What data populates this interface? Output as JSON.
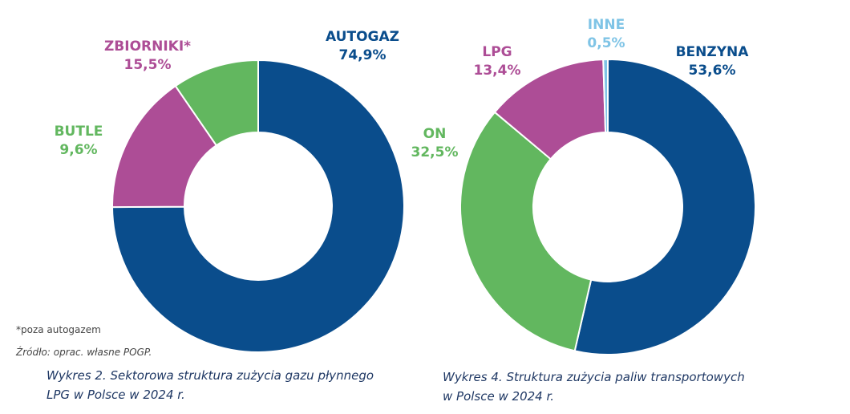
{
  "chart_data": [
    {
      "type": "donut",
      "categories": [
        "AUTOGAZ",
        "ZBIORNIKI*",
        "BUTLE"
      ],
      "values": [
        74.9,
        15.5,
        9.6
      ],
      "value_labels": [
        "74,9%",
        "15,5%",
        "9,6%"
      ],
      "colors": [
        "#0a4d8c",
        "#ad4d96",
        "#62b75f"
      ],
      "footnote": "*poza autogazem",
      "source": "Źródło: oprac. własne POGP.",
      "caption": "Wykres 2. Sektorowa struktura zużycia gazu płynnego\nLPG w Polsce w 2024 r."
    },
    {
      "type": "donut",
      "categories": [
        "BENZYNA",
        "ON",
        "LPG",
        "INNE"
      ],
      "values": [
        53.6,
        32.5,
        13.4,
        0.5
      ],
      "value_labels": [
        "53,6%",
        "32,5%",
        "13,4%",
        "0,5%"
      ],
      "colors": [
        "#0a4d8c",
        "#62b75f",
        "#ad4d96",
        "#7fc4e6"
      ],
      "caption": "Wykres 4. Struktura zużycia paliw transportowych\n w Polsce w 2024 r."
    }
  ]
}
